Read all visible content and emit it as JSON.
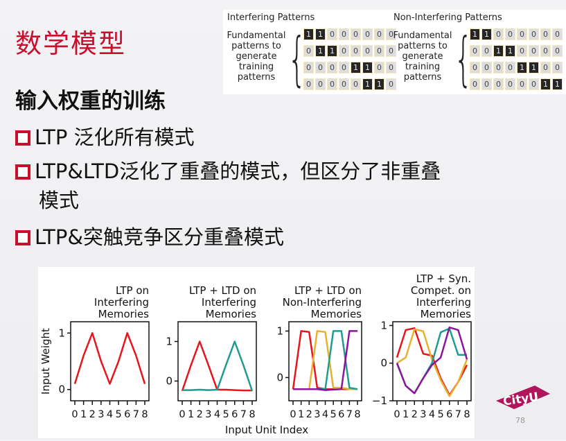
{
  "slide": {
    "title": "数学模型",
    "subtitle": "输入权重的训练",
    "bullets": [
      "LTP 泛化所有模式",
      "LTP&LTD泛化了重叠的模式，但区分了非重叠",
      "模式",
      "LTP&突触竞争区分重叠模式"
    ],
    "page_number": "78",
    "logo_text": "CityU",
    "accent_color": "#c8102e"
  },
  "patterns": {
    "label_lines": [
      "Fundamental",
      "patterns to",
      "generate",
      "training",
      "patterns"
    ],
    "groups": [
      {
        "title": "Interfering Patterns",
        "rows": [
          [
            1,
            1,
            0,
            0,
            0,
            0,
            0,
            0
          ],
          [
            0,
            1,
            1,
            0,
            0,
            0,
            0,
            0
          ],
          [
            0,
            0,
            0,
            0,
            1,
            1,
            0,
            0
          ],
          [
            0,
            0,
            0,
            0,
            0,
            1,
            1,
            0
          ]
        ]
      },
      {
        "title": "Non-Interfering Patterns",
        "rows": [
          [
            1,
            1,
            0,
            0,
            0,
            0,
            0,
            0
          ],
          [
            0,
            0,
            1,
            1,
            0,
            0,
            0,
            0
          ],
          [
            0,
            0,
            0,
            0,
            1,
            1,
            0,
            0
          ],
          [
            0,
            0,
            0,
            0,
            0,
            0,
            1,
            1
          ]
        ]
      }
    ]
  },
  "chart_data": {
    "type": "line",
    "xlabel": "Input Unit Index",
    "ylabel": "Input Weight",
    "x": [
      0,
      1,
      2,
      3,
      4,
      5,
      6,
      7,
      8
    ],
    "colors": {
      "red": "#e8141c",
      "teal": "#1f9b91",
      "yellow": "#e8b030",
      "purple": "#8a159a"
    },
    "panels": [
      {
        "title": [
          "LTP on",
          "Interfering",
          "Memories"
        ],
        "ylim": [
          -0.2,
          1.2
        ],
        "yticks": [
          0,
          1
        ],
        "series": [
          {
            "color": "red",
            "values": [
              0.1,
              0.6,
              1,
              0.5,
              0.1,
              0.5,
              1,
              0.6,
              0.1
            ]
          }
        ]
      },
      {
        "title": [
          "LTP + LTD on",
          "Interfering",
          "Memories"
        ],
        "ylim": [
          -0.5,
          1.5
        ],
        "yticks": [
          0,
          1
        ],
        "series": [
          {
            "color": "red",
            "values": [
              -0.25,
              0.4,
              1,
              0.4,
              -0.22,
              -0.22,
              -0.23,
              -0.24,
              -0.24
            ]
          },
          {
            "color": "teal",
            "values": [
              -0.23,
              -0.23,
              -0.22,
              -0.23,
              -0.22,
              0.4,
              1,
              0.4,
              -0.25
            ]
          }
        ]
      },
      {
        "title": [
          "LTP + LTD on",
          "Non-Interfering",
          "Memories"
        ],
        "ylim": [
          -0.5,
          1.2
        ],
        "yticks": [
          0,
          1
        ],
        "series": [
          {
            "color": "red",
            "values": [
              -0.25,
              1,
              0.98,
              -0.22,
              -0.25,
              -0.25,
              -0.25,
              -0.25,
              -0.25
            ]
          },
          {
            "color": "yellow",
            "values": [
              -0.25,
              -0.25,
              -0.25,
              1,
              0.98,
              -0.22,
              -0.22,
              -0.25,
              -0.25
            ]
          },
          {
            "color": "teal",
            "values": [
              -0.25,
              -0.25,
              -0.25,
              -0.25,
              -0.25,
              1,
              1,
              -0.22,
              -0.25
            ]
          },
          {
            "color": "purple",
            "values": [
              -0.25,
              -0.25,
              -0.25,
              -0.25,
              -0.27,
              -0.26,
              -0.25,
              1,
              1
            ]
          }
        ]
      },
      {
        "title": [
          "LTP + Syn.",
          "Compet. on",
          "Interfering",
          "Memories"
        ],
        "ylim": [
          -1,
          1.1
        ],
        "yticks": [
          -1,
          0,
          1
        ],
        "series": [
          {
            "color": "red",
            "values": [
              0.15,
              0.88,
              0.93,
              0.25,
              0.2,
              -0.4,
              -0.85,
              -0.5,
              -0.05
            ]
          },
          {
            "color": "yellow",
            "values": [
              0,
              0.15,
              0.9,
              0.85,
              0.1,
              -0.45,
              -0.88,
              -0.5,
              0.1
            ]
          },
          {
            "color": "teal",
            "values": [
              0,
              -0.6,
              -0.8,
              -0.4,
              0,
              0.82,
              0.92,
              0.22,
              0.22
            ]
          },
          {
            "color": "purple",
            "values": [
              0,
              -0.6,
              -0.8,
              -0.4,
              -0.05,
              0.15,
              0.95,
              0.88,
              0.1
            ]
          }
        ]
      }
    ]
  }
}
